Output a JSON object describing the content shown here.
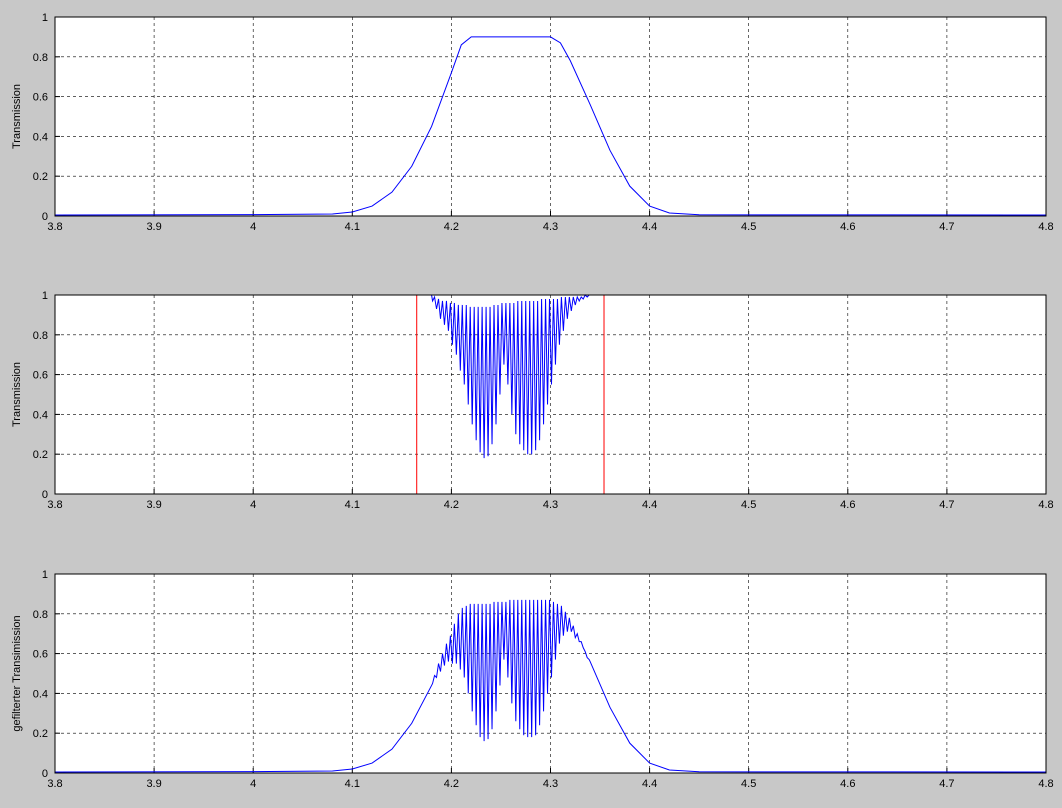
{
  "chart_data": [
    {
      "type": "line",
      "ylabel": "Transmission",
      "xlim": [
        3.8,
        4.8
      ],
      "ylim": [
        0,
        1
      ],
      "xticks": [
        3.8,
        3.9,
        4,
        4.1,
        4.2,
        4.3,
        4.4,
        4.5,
        4.6,
        4.7,
        4.8
      ],
      "yticks": [
        0,
        0.2,
        0.4,
        0.6,
        0.8,
        1
      ],
      "grid": true,
      "series": [
        {
          "color": "#0000ff",
          "x": [
            3.8,
            4.0,
            4.08,
            4.1,
            4.12,
            4.14,
            4.16,
            4.18,
            4.2,
            4.21,
            4.22,
            4.3,
            4.31,
            4.32,
            4.34,
            4.36,
            4.38,
            4.4,
            4.42,
            4.45,
            4.8
          ],
          "values": [
            0.005,
            0.007,
            0.01,
            0.02,
            0.05,
            0.12,
            0.25,
            0.45,
            0.72,
            0.86,
            0.9,
            0.9,
            0.87,
            0.78,
            0.56,
            0.33,
            0.15,
            0.05,
            0.015,
            0.006,
            0.005
          ]
        }
      ]
    },
    {
      "type": "line",
      "ylabel": "Transmission",
      "xlim": [
        3.8,
        4.8
      ],
      "ylim": [
        0,
        1
      ],
      "xticks": [
        3.8,
        3.9,
        4,
        4.1,
        4.2,
        4.3,
        4.4,
        4.5,
        4.6,
        4.7,
        4.8
      ],
      "yticks": [
        0,
        0.2,
        0.4,
        0.6,
        0.8,
        1
      ],
      "grid": true,
      "series": [
        {
          "color": "#0000ff",
          "x": [
            3.8,
            4.18,
            4.181,
            4.183,
            4.185,
            4.187,
            4.189,
            4.191,
            4.193,
            4.195,
            4.197,
            4.199,
            4.201,
            4.203,
            4.205,
            4.207,
            4.209,
            4.211,
            4.213,
            4.215,
            4.217,
            4.219,
            4.221,
            4.223,
            4.225,
            4.227,
            4.229,
            4.231,
            4.233,
            4.235,
            4.237,
            4.239,
            4.241,
            4.243,
            4.245,
            4.247,
            4.249,
            4.251,
            4.253,
            4.255,
            4.257,
            4.259,
            4.261,
            4.263,
            4.265,
            4.267,
            4.269,
            4.271,
            4.273,
            4.275,
            4.277,
            4.279,
            4.281,
            4.283,
            4.285,
            4.287,
            4.289,
            4.291,
            4.293,
            4.295,
            4.297,
            4.299,
            4.301,
            4.303,
            4.305,
            4.307,
            4.309,
            4.311,
            4.313,
            4.315,
            4.317,
            4.319,
            4.321,
            4.323,
            4.325,
            4.327,
            4.329,
            4.331,
            4.333,
            4.335,
            4.337,
            4.339,
            4.34,
            4.8
          ],
          "values": [
            1,
            1,
            0.97,
            0.99,
            0.93,
            0.98,
            0.88,
            0.97,
            0.85,
            0.97,
            0.82,
            0.96,
            0.75,
            0.96,
            0.7,
            0.95,
            0.62,
            0.95,
            0.55,
            0.95,
            0.45,
            0.94,
            0.35,
            0.94,
            0.27,
            0.94,
            0.21,
            0.94,
            0.18,
            0.94,
            0.19,
            0.94,
            0.25,
            0.95,
            0.35,
            0.95,
            0.5,
            0.96,
            0.65,
            0.96,
            0.55,
            0.96,
            0.4,
            0.96,
            0.3,
            0.97,
            0.25,
            0.97,
            0.22,
            0.97,
            0.2,
            0.97,
            0.2,
            0.97,
            0.22,
            0.97,
            0.27,
            0.98,
            0.35,
            0.98,
            0.45,
            0.98,
            0.55,
            0.98,
            0.65,
            0.98,
            0.75,
            0.99,
            0.82,
            0.99,
            0.88,
            0.99,
            0.92,
            0.99,
            0.95,
            0.99,
            0.97,
            0.99,
            0.98,
            1,
            0.99,
            1,
            1,
            1
          ]
        },
        {
          "color": "#ff0000",
          "x": [
            4.165,
            4.165
          ],
          "values": [
            0,
            1
          ]
        },
        {
          "color": "#ff0000",
          "x": [
            4.354,
            4.354
          ],
          "values": [
            0,
            1
          ]
        }
      ]
    },
    {
      "type": "line",
      "ylabel": "gefilterter Transimission",
      "xlim": [
        3.8,
        4.8
      ],
      "ylim": [
        0,
        1
      ],
      "xticks": [
        3.8,
        3.9,
        4,
        4.1,
        4.2,
        4.3,
        4.4,
        4.5,
        4.6,
        4.7,
        4.8
      ],
      "yticks": [
        0,
        0.2,
        0.4,
        0.6,
        0.8,
        1
      ],
      "grid": true,
      "series": [
        {
          "color": "#0000ff",
          "x": [
            3.8,
            4.0,
            4.08,
            4.1,
            4.12,
            4.14,
            4.16,
            4.18,
            4.181,
            4.183,
            4.185,
            4.187,
            4.189,
            4.191,
            4.193,
            4.195,
            4.197,
            4.199,
            4.201,
            4.203,
            4.205,
            4.207,
            4.209,
            4.211,
            4.213,
            4.215,
            4.217,
            4.219,
            4.221,
            4.223,
            4.225,
            4.227,
            4.229,
            4.231,
            4.233,
            4.235,
            4.237,
            4.239,
            4.241,
            4.243,
            4.245,
            4.247,
            4.249,
            4.251,
            4.253,
            4.255,
            4.257,
            4.259,
            4.261,
            4.263,
            4.265,
            4.267,
            4.269,
            4.271,
            4.273,
            4.275,
            4.277,
            4.279,
            4.281,
            4.283,
            4.285,
            4.287,
            4.289,
            4.291,
            4.293,
            4.295,
            4.297,
            4.299,
            4.301,
            4.303,
            4.305,
            4.307,
            4.309,
            4.311,
            4.313,
            4.315,
            4.317,
            4.319,
            4.321,
            4.323,
            4.325,
            4.327,
            4.329,
            4.331,
            4.333,
            4.335,
            4.337,
            4.339,
            4.34,
            4.36,
            4.38,
            4.4,
            4.42,
            4.45,
            4.8
          ],
          "values": [
            0.005,
            0.007,
            0.01,
            0.02,
            0.05,
            0.12,
            0.25,
            0.44,
            0.45,
            0.49,
            0.48,
            0.55,
            0.51,
            0.6,
            0.54,
            0.65,
            0.56,
            0.69,
            0.55,
            0.75,
            0.55,
            0.8,
            0.52,
            0.83,
            0.48,
            0.84,
            0.4,
            0.85,
            0.31,
            0.85,
            0.24,
            0.85,
            0.18,
            0.85,
            0.16,
            0.85,
            0.17,
            0.85,
            0.22,
            0.86,
            0.31,
            0.86,
            0.44,
            0.86,
            0.57,
            0.86,
            0.48,
            0.87,
            0.35,
            0.87,
            0.26,
            0.87,
            0.22,
            0.87,
            0.19,
            0.87,
            0.18,
            0.87,
            0.18,
            0.87,
            0.19,
            0.87,
            0.24,
            0.87,
            0.31,
            0.87,
            0.4,
            0.87,
            0.48,
            0.86,
            0.57,
            0.85,
            0.65,
            0.84,
            0.69,
            0.81,
            0.71,
            0.78,
            0.71,
            0.74,
            0.68,
            0.7,
            0.66,
            0.66,
            0.63,
            0.61,
            0.58,
            0.57,
            0.56,
            0.33,
            0.15,
            0.05,
            0.015,
            0.006,
            0.005
          ]
        }
      ]
    }
  ]
}
